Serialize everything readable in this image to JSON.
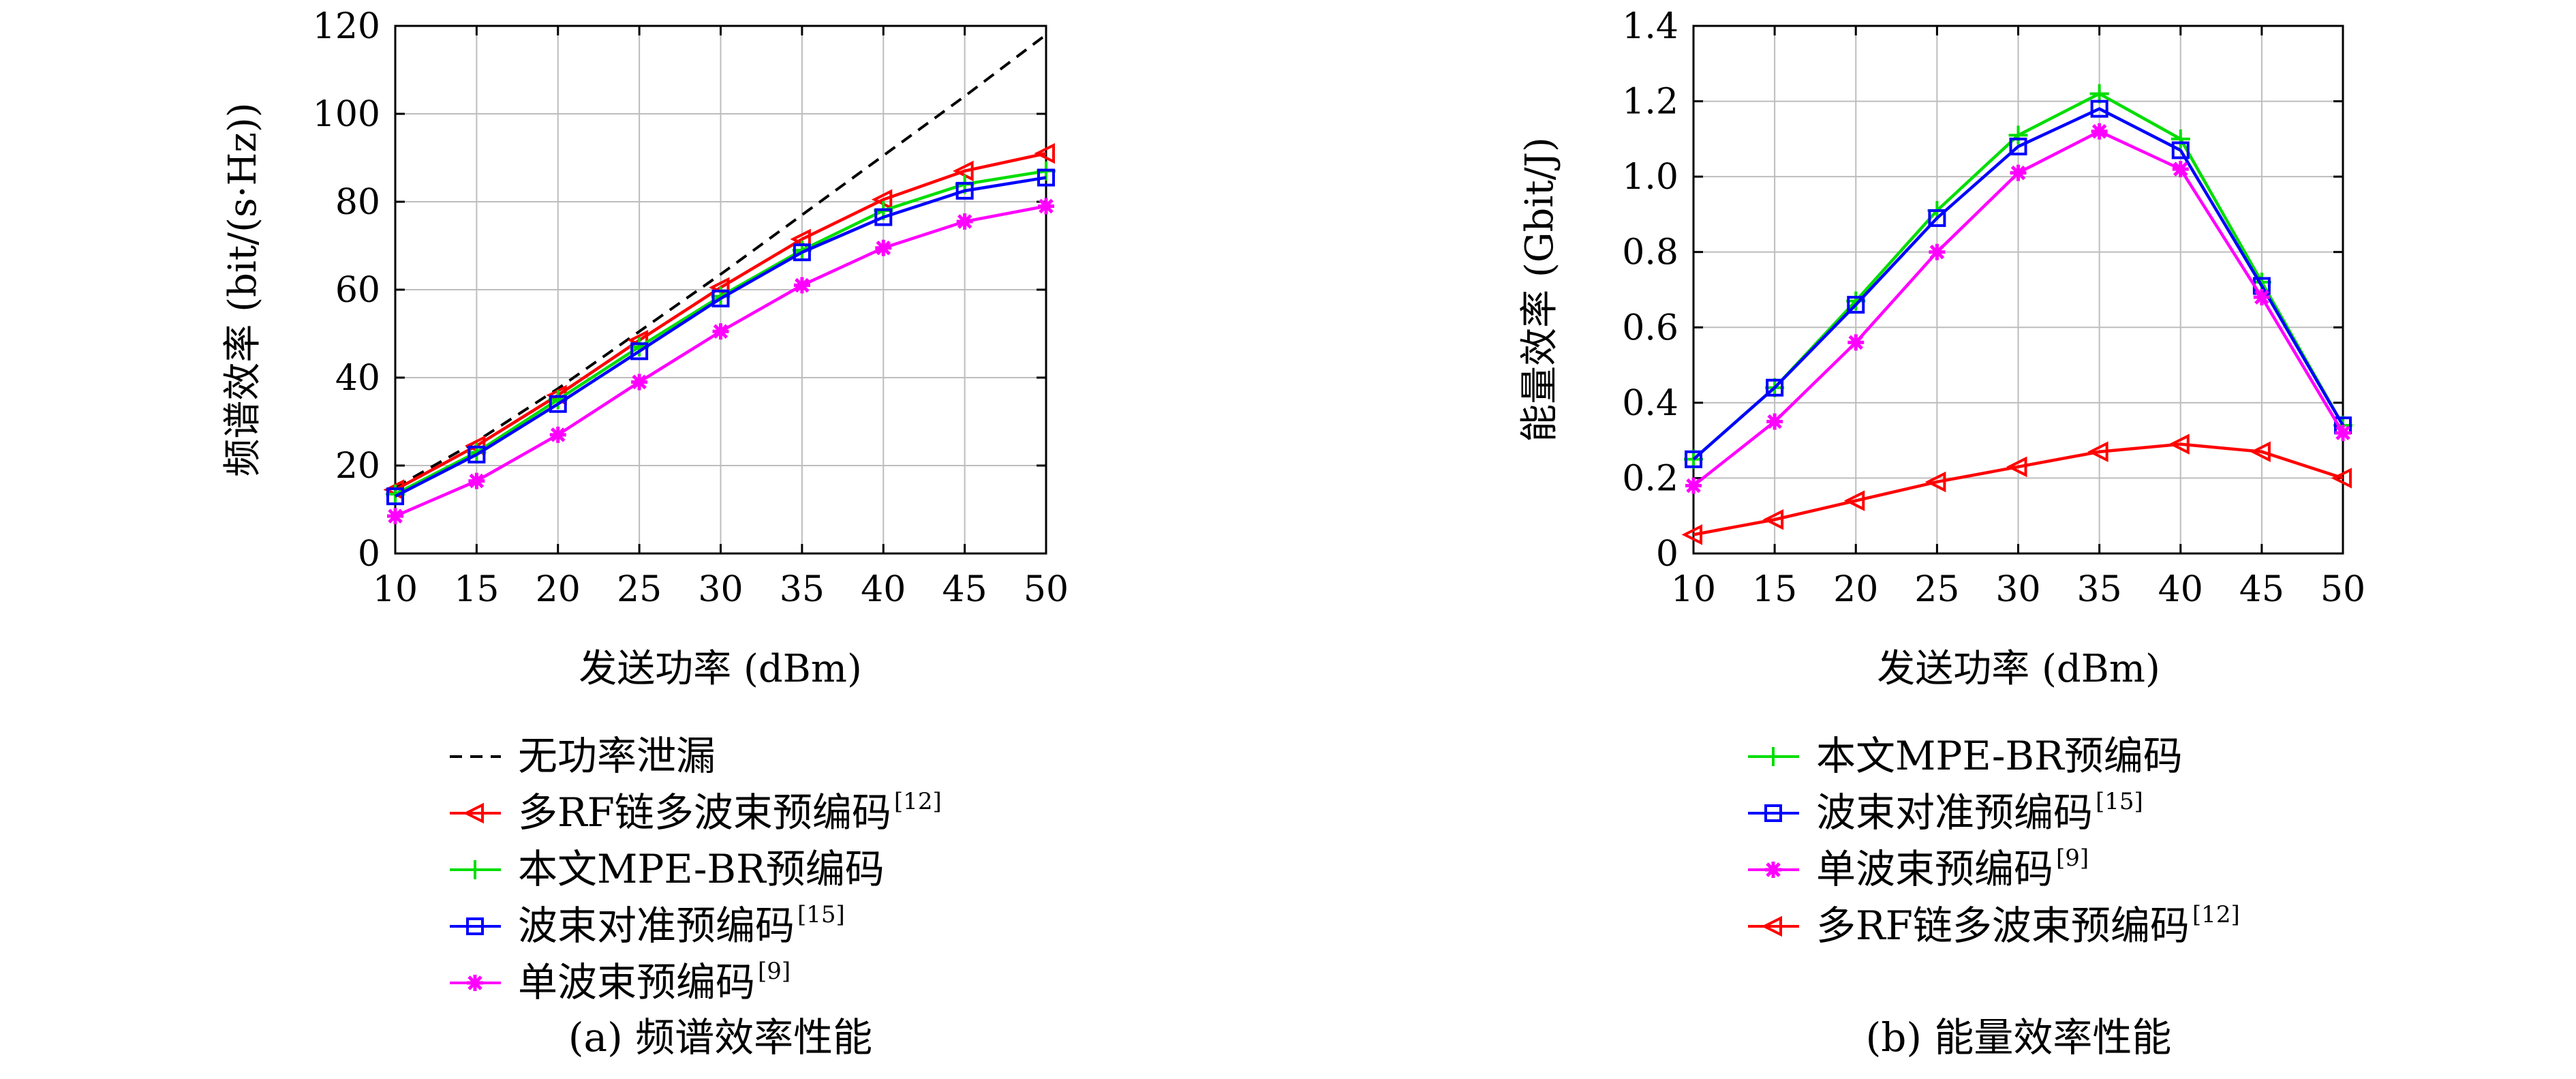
{
  "chart_data": [
    {
      "type": "line",
      "caption": "(a) 频谱效率性能",
      "xlabel": "发送功率 (dBm)",
      "ylabel": "频谱效率 (bit/(s·Hz))",
      "x": [
        10,
        15,
        20,
        25,
        30,
        35,
        40,
        45,
        50
      ],
      "xlim": [
        10,
        50
      ],
      "ylim": [
        0,
        120
      ],
      "xticks": [
        "10",
        "15",
        "20",
        "25",
        "30",
        "35",
        "40",
        "45",
        "50"
      ],
      "yticks": [
        "0",
        "20",
        "40",
        "60",
        "80",
        "100",
        "120"
      ],
      "grid": true,
      "legend_position": "below",
      "series": [
        {
          "name": "无功率泄漏",
          "ref": "",
          "color": "#000000",
          "dash": true,
          "marker": "none",
          "values": [
            15,
            25.5,
            37.5,
            50.5,
            63.5,
            77,
            90.5,
            104,
            118
          ]
        },
        {
          "name": "多RF链多波束预编码",
          "ref": "[12]",
          "color": "#ff0000",
          "dash": false,
          "marker": "triangle-left",
          "values": [
            14.5,
            24.5,
            36,
            48.5,
            60.5,
            71.5,
            80.5,
            87,
            91
          ]
        },
        {
          "name": "本文MPE-BR预编码",
          "ref": "",
          "color": "#00dd00",
          "dash": false,
          "marker": "plus",
          "values": [
            13.5,
            23,
            35,
            47,
            58.5,
            69,
            78,
            84,
            87
          ]
        },
        {
          "name": "波束对准预编码",
          "ref": "[15]",
          "color": "#0000ff",
          "dash": false,
          "marker": "square",
          "values": [
            13,
            22.5,
            34,
            46,
            58,
            68.5,
            76.5,
            82.5,
            85.5
          ]
        },
        {
          "name": "单波束预编码",
          "ref": "[9]",
          "color": "#ff00ff",
          "dash": false,
          "marker": "star",
          "values": [
            8.5,
            16.5,
            27,
            39,
            50.5,
            61,
            69.5,
            75.5,
            79
          ]
        }
      ]
    },
    {
      "type": "line",
      "caption": "(b) 能量效率性能",
      "xlabel": "发送功率 (dBm)",
      "ylabel": "能量效率 (Gbit/J)",
      "x": [
        10,
        15,
        20,
        25,
        30,
        35,
        40,
        45,
        50
      ],
      "xlim": [
        10,
        50
      ],
      "ylim": [
        0,
        1.4
      ],
      "xticks": [
        "10",
        "15",
        "20",
        "25",
        "30",
        "35",
        "40",
        "45",
        "50"
      ],
      "yticks": [
        "0",
        "0.2",
        "0.4",
        "0.6",
        "0.8",
        "1.0",
        "1.2",
        "1.4"
      ],
      "grid": true,
      "legend_position": "below",
      "series": [
        {
          "name": "本文MPE-BR预编码",
          "ref": "",
          "color": "#00dd00",
          "dash": false,
          "marker": "plus",
          "values": [
            0.25,
            0.44,
            0.67,
            0.91,
            1.11,
            1.22,
            1.1,
            0.72,
            0.34
          ]
        },
        {
          "name": "波束对准预编码",
          "ref": "[15]",
          "color": "#0000ff",
          "dash": false,
          "marker": "square",
          "values": [
            0.25,
            0.44,
            0.66,
            0.89,
            1.08,
            1.18,
            1.07,
            0.71,
            0.34
          ]
        },
        {
          "name": "单波束预编码",
          "ref": "[9]",
          "color": "#ff00ff",
          "dash": false,
          "marker": "star",
          "values": [
            0.18,
            0.35,
            0.56,
            0.8,
            1.01,
            1.12,
            1.02,
            0.68,
            0.32
          ]
        },
        {
          "name": "多RF链多波束预编码",
          "ref": "[12]",
          "color": "#ff0000",
          "dash": false,
          "marker": "triangle-left",
          "values": [
            0.05,
            0.09,
            0.14,
            0.19,
            0.23,
            0.27,
            0.29,
            0.27,
            0.2
          ]
        }
      ]
    }
  ]
}
